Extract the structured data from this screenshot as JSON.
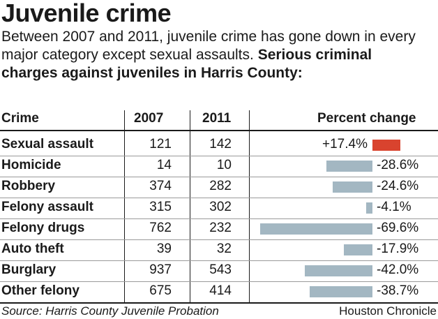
{
  "title": "Juvenile crime",
  "intro_text": "Between 2007 and 2011, juvenile crime has gone down in every major category except sexual assaults.",
  "intro_bold": "Serious criminal charges against juveniles in Harris County:",
  "headers": {
    "crime": "Crime",
    "y2007": "2007",
    "y2011": "2011",
    "pct": "Percent change"
  },
  "colors": {
    "increase": "#d9432e",
    "decrease": "#a3b7c2"
  },
  "chart_data": {
    "type": "table",
    "columns": [
      "Crime",
      "2007",
      "2011",
      "Percent change"
    ],
    "rows": [
      {
        "crime": "Sexual assault",
        "y2007": "121",
        "y2011": "142",
        "pct_label": "+17.4%",
        "pct": 17.4
      },
      {
        "crime": "Homicide",
        "y2007": "14",
        "y2011": "10",
        "pct_label": "-28.6%",
        "pct": -28.6
      },
      {
        "crime": "Robbery",
        "y2007": "374",
        "y2011": "282",
        "pct_label": "-24.6%",
        "pct": -24.6
      },
      {
        "crime": "Felony assault",
        "y2007": "315",
        "y2011": "302",
        "pct_label": "-4.1%",
        "pct": -4.1
      },
      {
        "crime": "Felony drugs",
        "y2007": "762",
        "y2011": "232",
        "pct_label": "-69.6%",
        "pct": -69.6
      },
      {
        "crime": "Auto theft",
        "y2007": "39",
        "y2011": "32",
        "pct_label": "-17.9%",
        "pct": -17.9
      },
      {
        "crime": "Burglary",
        "y2007": "937",
        "y2011": "543",
        "pct_label": "-42.0%",
        "pct": -42.0
      },
      {
        "crime": "Other felony",
        "y2007": "675",
        "y2011": "414",
        "pct_label": "-38.7%",
        "pct": -38.7
      }
    ]
  },
  "source": "Source: Harris County Juvenile Probation",
  "credit": "Houston Chronicle"
}
